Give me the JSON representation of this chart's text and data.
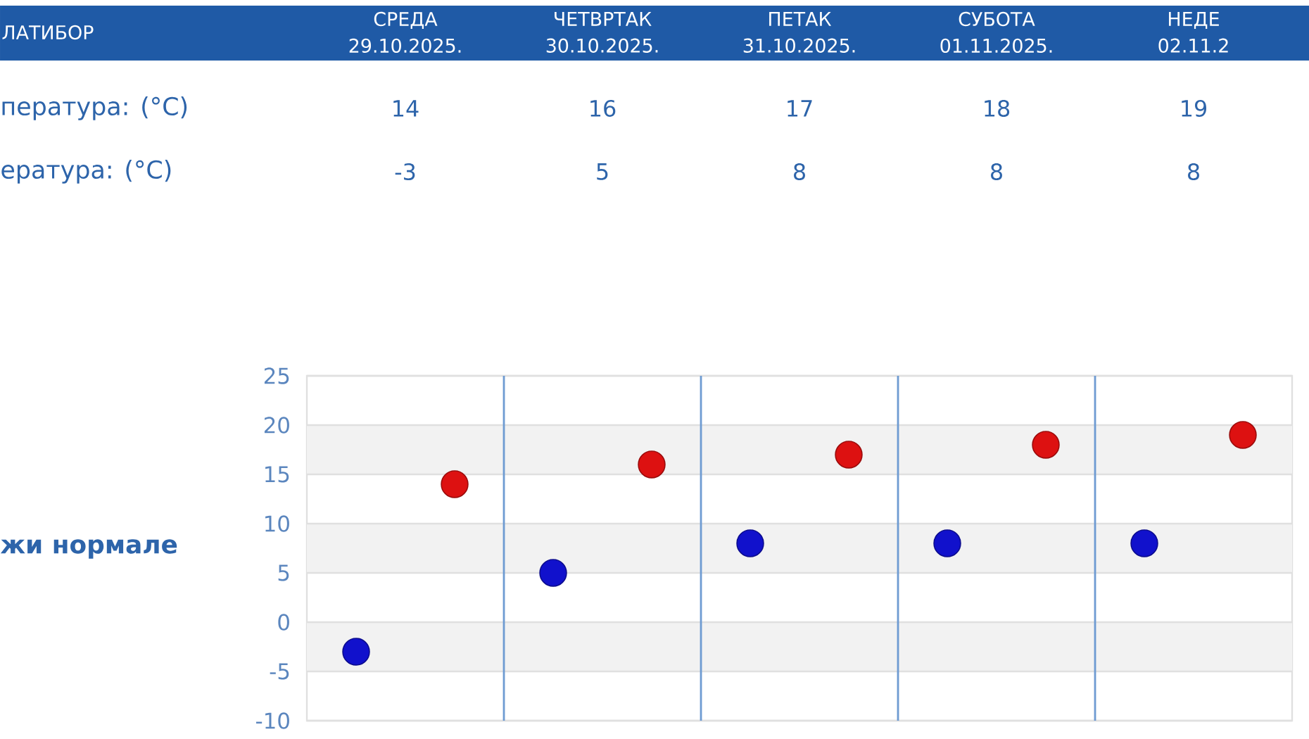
{
  "chart_data": {
    "type": "scatter",
    "title": "ЛАТИБОР",
    "categories": [
      null,
      null,
      null,
      null,
      null
    ],
    "series": [
      {
        "color": "#dd1111",
        "values": [
          14,
          16,
          17,
          18,
          19
        ],
        "value_labels": [
          "14",
          "16",
          "17",
          "18",
          "19"
        ]
      },
      {
        "color": "#1111cc",
        "values": [
          -3,
          5,
          8,
          8,
          8
        ],
        "value_labels": [
          "-3",
          "5",
          "8",
          "8",
          "8"
        ]
      }
    ],
    "ylim": [
      -10,
      25
    ],
    "yticks": [
      -10,
      -5,
      0,
      5,
      10,
      15,
      20,
      25
    ],
    "bands": [
      {
        "axis": "y",
        "from": 15,
        "to": 20,
        "color": "#f2f2f2"
      },
      {
        "axis": "y",
        "from": 5,
        "to": 10,
        "color": "#f2f2f2"
      },
      {
        "axis": "y",
        "from": -5,
        "to": 0,
        "color": "#f2f2f2"
      }
    ],
    "grid": true,
    "marker": "circle",
    "annotations": [
      "СРЕДА 29.10.2025.",
      "ЧЕТВРТАК 30.10.2025.",
      "ПЕТАК 31.10.2025.",
      "СУБОТА 01.11.2025.",
      "НЕДЕ 02.11.2",
      "пература: (°C)",
      "ература: (°C)",
      "жи нормале"
    ]
  }
}
